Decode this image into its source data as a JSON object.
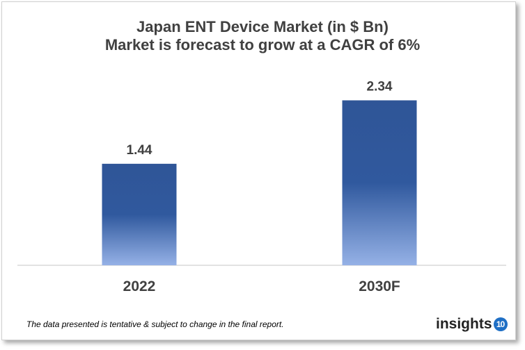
{
  "chart_data": {
    "type": "bar",
    "title": "Japan ENT Device Market (in $ Bn)",
    "subtitle": "Market is forecast to grow at a CAGR of 6%",
    "categories": [
      "2022",
      "2030F"
    ],
    "values": [
      1.44,
      2.34
    ],
    "data_labels": [
      "1.44",
      "2.34"
    ],
    "xlabel": "",
    "ylabel": "",
    "ylim": [
      0,
      3.0
    ],
    "grid": false,
    "colors": {
      "bar_top": "#2f5597",
      "bar_bottom": "#95b1e6",
      "text": "#404040"
    }
  },
  "footnote": "The data presented is tentative & subject to change in the final report.",
  "logo": {
    "text": "insights",
    "badge": "10"
  }
}
